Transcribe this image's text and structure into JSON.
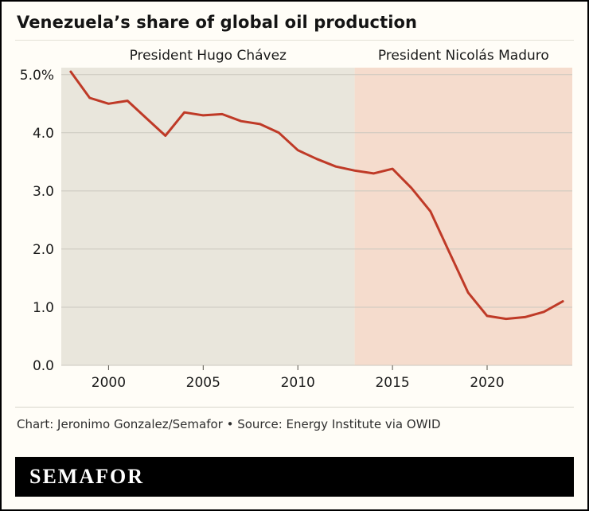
{
  "title": "Venezuela’s share of global oil production",
  "footer": {
    "credit": "Chart: Jeronimo Gonzalez/Semafor • Source: Energy Institute via OWID",
    "logo": "SEMAFOR"
  },
  "chart_data": {
    "type": "line",
    "title": "Venezuela’s share of global oil production",
    "xlabel": "",
    "ylabel": "",
    "xlim": [
      1997.5,
      2024.5
    ],
    "ylim": [
      0,
      5.12
    ],
    "yticks": [
      0,
      1,
      2,
      3,
      4,
      5
    ],
    "ytick_labels": [
      "0.0",
      "1.0",
      "2.0",
      "3.0",
      "4.0",
      "5.0%"
    ],
    "xticks": [
      2000,
      2005,
      2010,
      2015,
      2020
    ],
    "grid": true,
    "grid_color": "#cbc8bf",
    "line_color": "#bf3a27",
    "background_color": "#fffdf7",
    "legend": "none",
    "bands": [
      {
        "label": "President Hugo Chávez",
        "from": 1997.5,
        "to": 2013,
        "color": "#e9e6dc"
      },
      {
        "label": "President Nicolás Maduro",
        "from": 2013,
        "to": 2024.5,
        "color": "#f5dccd"
      }
    ],
    "series": [
      {
        "name": "Venezuela share of global oil production (%)",
        "x": [
          1998,
          1999,
          2000,
          2001,
          2002,
          2003,
          2004,
          2005,
          2006,
          2007,
          2008,
          2009,
          2010,
          2011,
          2012,
          2013,
          2014,
          2015,
          2016,
          2017,
          2018,
          2019,
          2020,
          2021,
          2022,
          2023,
          2024
        ],
        "y": [
          5.05,
          4.6,
          4.5,
          4.55,
          4.25,
          3.95,
          4.35,
          4.3,
          4.32,
          4.2,
          4.15,
          4.0,
          3.7,
          3.55,
          3.42,
          3.35,
          3.3,
          3.38,
          3.05,
          2.65,
          1.95,
          1.25,
          0.85,
          0.8,
          0.83,
          0.92,
          1.1
        ]
      }
    ]
  }
}
